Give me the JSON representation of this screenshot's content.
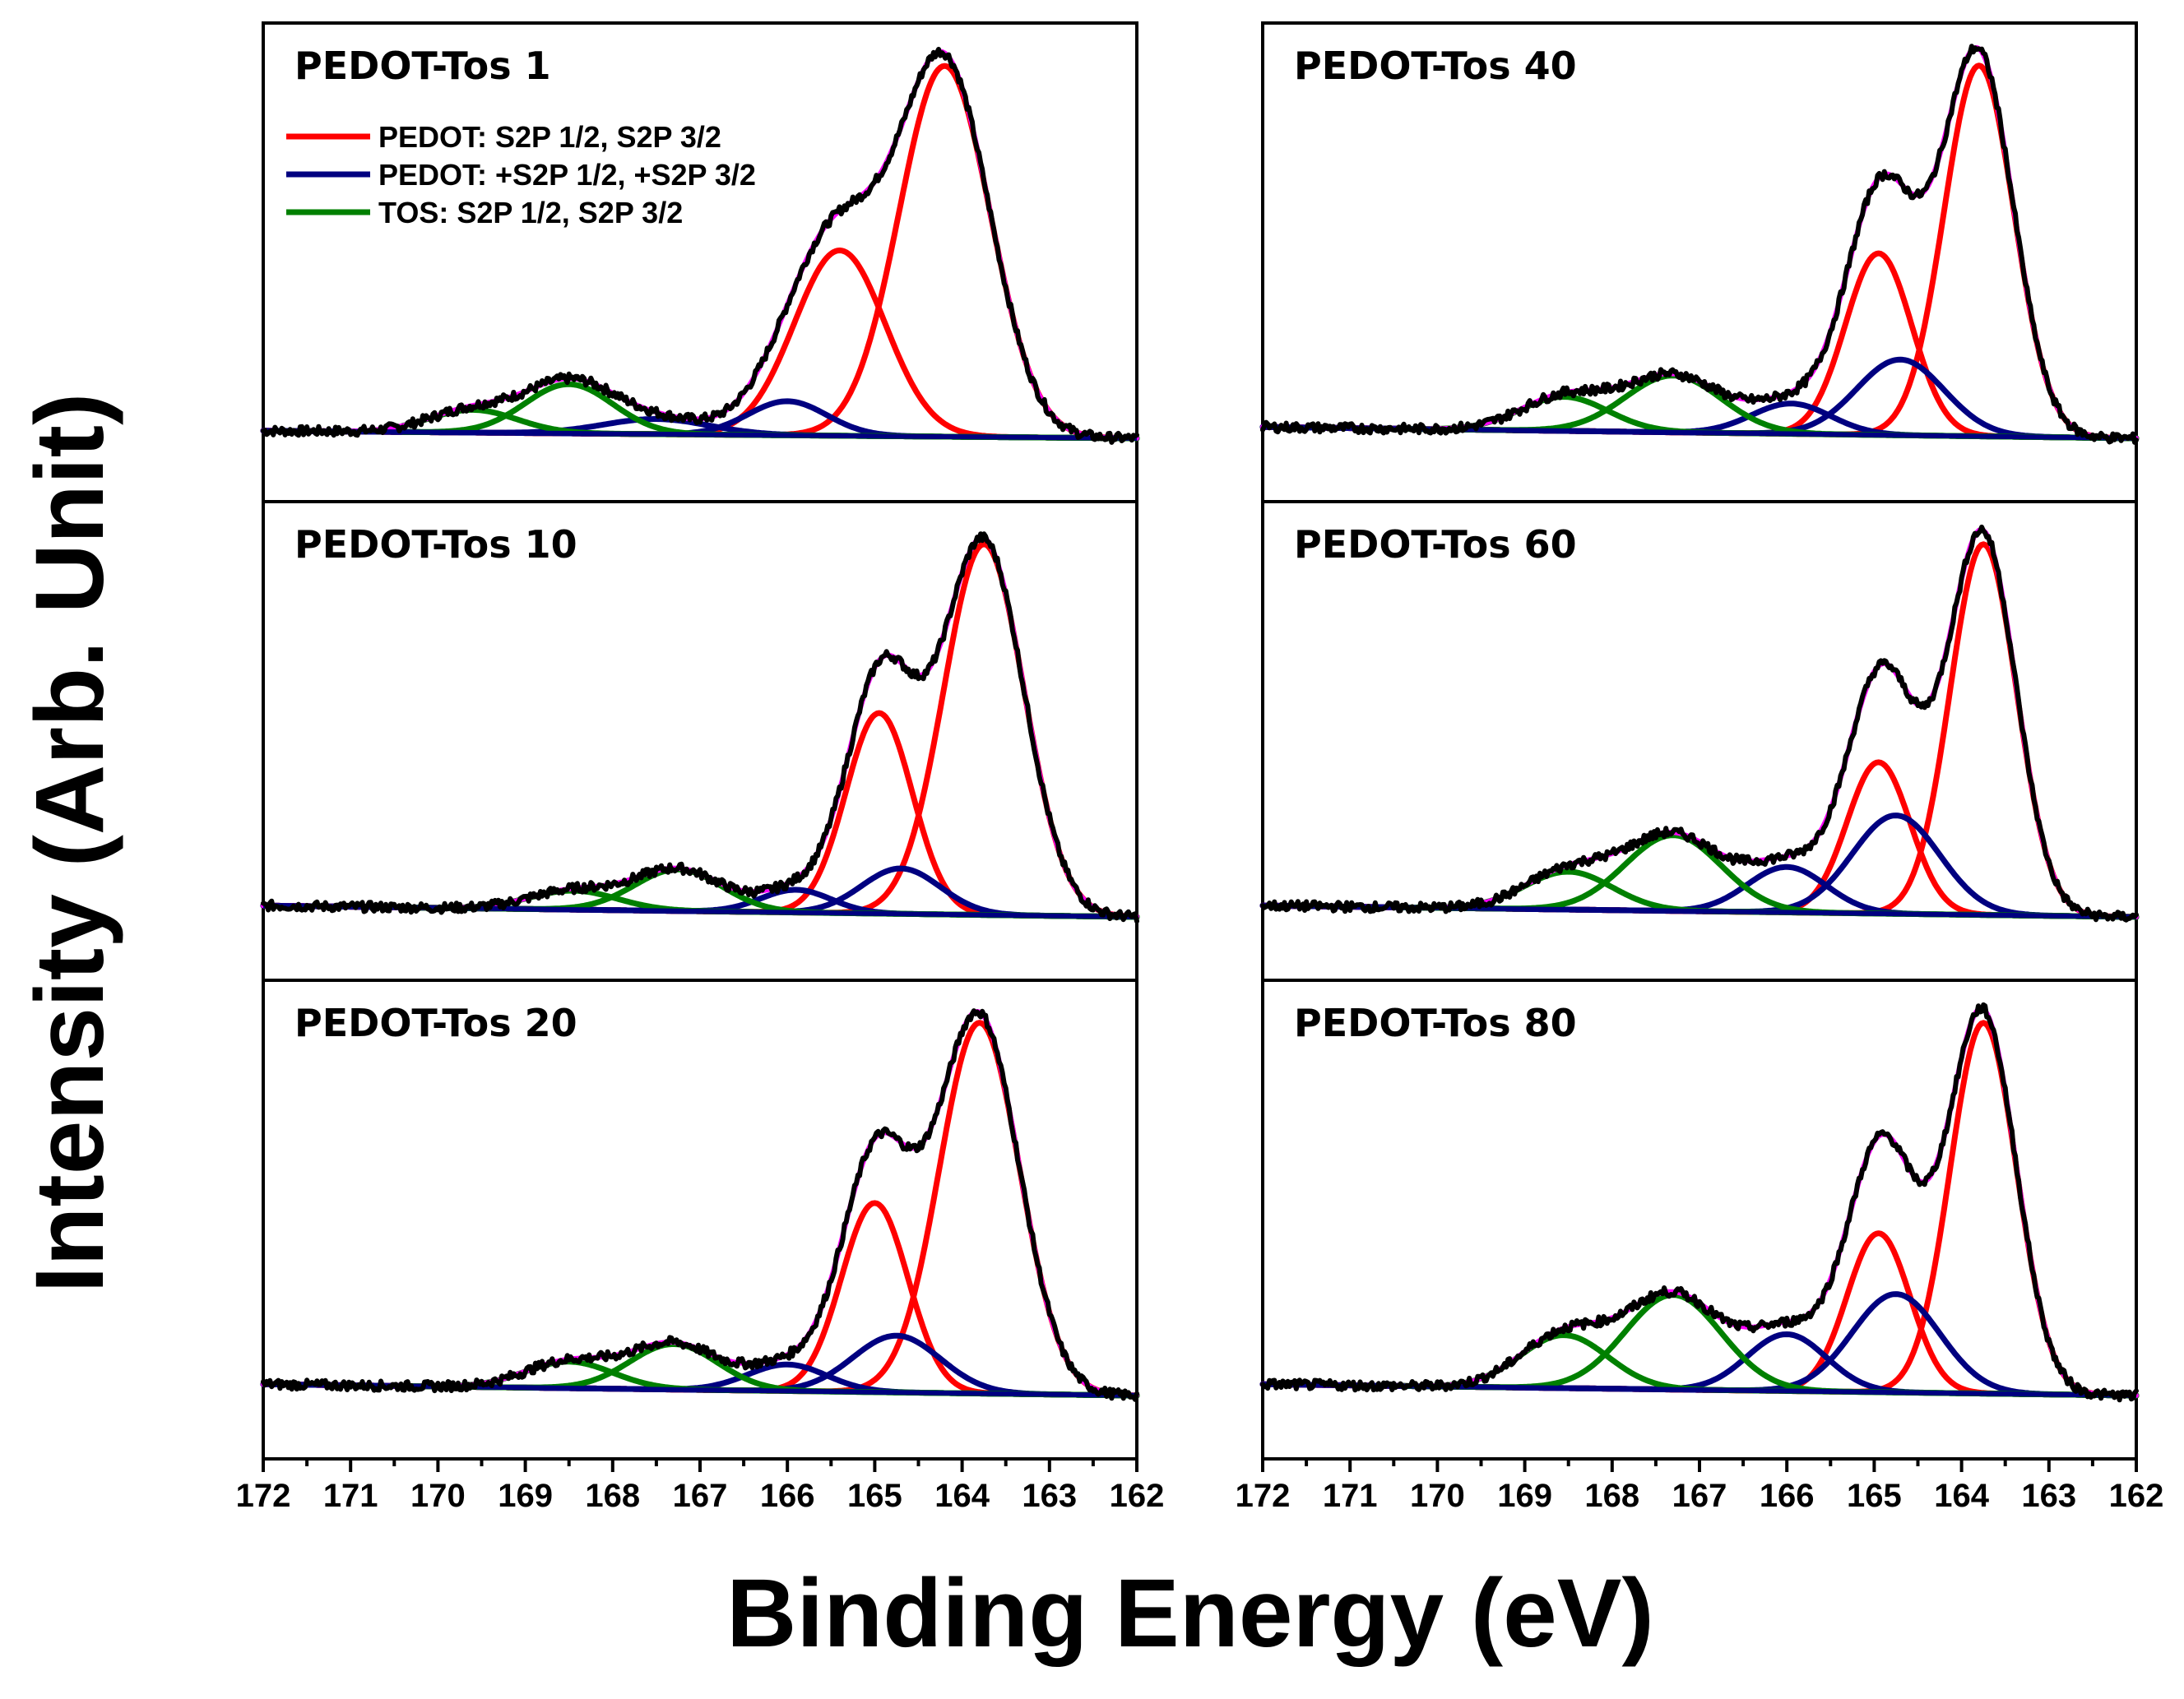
{
  "figure": {
    "ylabel": "Intensity (Arb. Unit)",
    "xlabel": "Binding Energy (eV)"
  },
  "colors": {
    "pedot": "#ff0000",
    "pedot_plus": "#000080",
    "tos": "#008000",
    "envelope": "#ff00ff",
    "data": "#000000"
  },
  "legend": [
    {
      "label": "PEDOT: S2P 1/2, S2P 3/2",
      "color": "#ff0000"
    },
    {
      "label": "PEDOT: +S2P 1/2, +S2P 3/2",
      "color": "#000080"
    },
    {
      "label": "TOS: S2P 1/2, S2P 3/2",
      "color": "#008000"
    }
  ],
  "chart_data": {
    "type": "line",
    "x_axis": {
      "label": "Binding Energy (eV)",
      "range": [
        172,
        162
      ],
      "reversed": true,
      "ticks": [
        "172",
        "171",
        "170",
        "169",
        "168",
        "167",
        "166",
        "165",
        "164",
        "163",
        "162"
      ]
    },
    "y_axis": {
      "label": "Intensity (Arb. Unit)",
      "ticks_shown": false
    },
    "panels": [
      {
        "title": "PEDOT-Tos 1",
        "column": 0,
        "row": 0,
        "baseline": [
          0.02,
          0.0
        ],
        "data_peak": 1.0,
        "shoulder_dip": 0.0,
        "components": [
          {
            "series": "pedot",
            "center": 164.2,
            "height": 0.98,
            "width": 0.52
          },
          {
            "series": "pedot",
            "center": 165.4,
            "height": 0.49,
            "width": 0.52
          },
          {
            "series": "pedot_plus",
            "center": 166.0,
            "height": 0.09,
            "width": 0.45
          },
          {
            "series": "pedot_plus",
            "center": 167.5,
            "height": 0.04,
            "width": 0.6
          },
          {
            "series": "tos",
            "center": 168.5,
            "height": 0.13,
            "width": 0.5
          },
          {
            "series": "tos",
            "center": 169.6,
            "height": 0.06,
            "width": 0.5
          }
        ]
      },
      {
        "title": "PEDOT-Tos 10",
        "column": 0,
        "row": 1,
        "baseline": [
          0.03,
          0.0
        ],
        "data_peak": 1.0,
        "shoulder_dip": 0.02,
        "components": [
          {
            "series": "pedot",
            "center": 163.75,
            "height": 0.98,
            "width": 0.46
          },
          {
            "series": "pedot",
            "center": 164.95,
            "height": 0.53,
            "width": 0.38
          },
          {
            "series": "pedot_plus",
            "center": 164.7,
            "height": 0.12,
            "width": 0.45
          },
          {
            "series": "pedot_plus",
            "center": 165.9,
            "height": 0.06,
            "width": 0.4
          },
          {
            "series": "tos",
            "center": 167.25,
            "height": 0.11,
            "width": 0.5
          },
          {
            "series": "tos",
            "center": 168.45,
            "height": 0.05,
            "width": 0.5
          }
        ]
      },
      {
        "title": "PEDOT-Tos 20",
        "column": 0,
        "row": 2,
        "baseline": [
          0.03,
          0.0
        ],
        "data_peak": 1.0,
        "shoulder_dip": 0.02,
        "components": [
          {
            "series": "pedot",
            "center": 163.8,
            "height": 0.98,
            "width": 0.46
          },
          {
            "series": "pedot",
            "center": 165.0,
            "height": 0.5,
            "width": 0.38
          },
          {
            "series": "pedot_plus",
            "center": 164.75,
            "height": 0.15,
            "width": 0.5
          },
          {
            "series": "pedot_plus",
            "center": 166.0,
            "height": 0.07,
            "width": 0.45
          },
          {
            "series": "tos",
            "center": 167.3,
            "height": 0.12,
            "width": 0.5
          },
          {
            "series": "tos",
            "center": 168.5,
            "height": 0.07,
            "width": 0.5
          }
        ]
      },
      {
        "title": "PEDOT-Tos 40",
        "column": 1,
        "row": 0,
        "baseline": [
          0.03,
          0.0
        ],
        "data_peak": 1.0,
        "shoulder_dip": 0.03,
        "components": [
          {
            "series": "pedot",
            "center": 163.8,
            "height": 0.98,
            "width": 0.4
          },
          {
            "series": "pedot",
            "center": 164.95,
            "height": 0.48,
            "width": 0.38
          },
          {
            "series": "pedot_plus",
            "center": 164.7,
            "height": 0.2,
            "width": 0.5
          },
          {
            "series": "pedot_plus",
            "center": 165.95,
            "height": 0.08,
            "width": 0.45
          },
          {
            "series": "tos",
            "center": 167.3,
            "height": 0.15,
            "width": 0.55
          },
          {
            "series": "tos",
            "center": 168.55,
            "height": 0.09,
            "width": 0.5
          }
        ]
      },
      {
        "title": "PEDOT-Tos 60",
        "column": 1,
        "row": 1,
        "baseline": [
          0.03,
          0.0
        ],
        "data_peak": 1.0,
        "shoulder_dip": 0.03,
        "components": [
          {
            "series": "pedot",
            "center": 163.75,
            "height": 0.98,
            "width": 0.38
          },
          {
            "series": "pedot",
            "center": 164.95,
            "height": 0.4,
            "width": 0.36
          },
          {
            "series": "pedot_plus",
            "center": 164.75,
            "height": 0.26,
            "width": 0.5
          },
          {
            "series": "pedot_plus",
            "center": 166.0,
            "height": 0.12,
            "width": 0.45
          },
          {
            "series": "tos",
            "center": 167.3,
            "height": 0.2,
            "width": 0.55
          },
          {
            "series": "tos",
            "center": 168.5,
            "height": 0.1,
            "width": 0.5
          }
        ]
      },
      {
        "title": "PEDOT-Tos 80",
        "column": 1,
        "row": 2,
        "baseline": [
          0.03,
          0.0
        ],
        "data_peak": 1.0,
        "shoulder_dip": 0.04,
        "components": [
          {
            "series": "pedot",
            "center": 163.75,
            "height": 0.98,
            "width": 0.38
          },
          {
            "series": "pedot",
            "center": 164.95,
            "height": 0.42,
            "width": 0.36
          },
          {
            "series": "pedot_plus",
            "center": 164.75,
            "height": 0.26,
            "width": 0.5
          },
          {
            "series": "pedot_plus",
            "center": 166.0,
            "height": 0.15,
            "width": 0.45
          },
          {
            "series": "tos",
            "center": 167.3,
            "height": 0.25,
            "width": 0.55
          },
          {
            "series": "tos",
            "center": 168.55,
            "height": 0.14,
            "width": 0.5
          }
        ]
      }
    ]
  }
}
